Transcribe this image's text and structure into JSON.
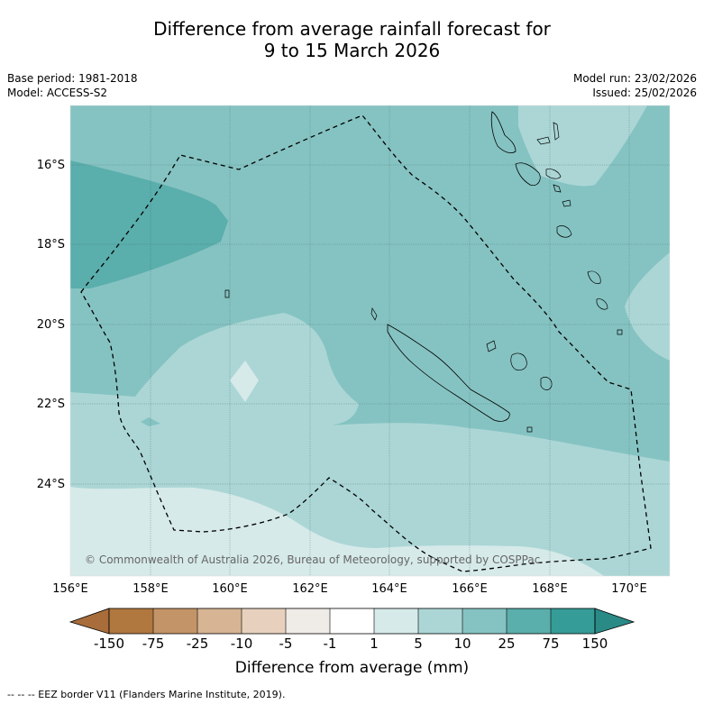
{
  "title_line1": "Difference from average rainfall forecast for",
  "title_line2": "9 to 15 March 2026",
  "meta_left_1": "Base period: 1981-2018",
  "meta_left_2": "Model: ACCESS-S2",
  "meta_right_1": "Model run: 23/02/2026",
  "meta_right_2": "Issued: 25/02/2026",
  "x_ticks": [
    "156°E",
    "158°E",
    "160°E",
    "162°E",
    "164°E",
    "166°E",
    "168°E",
    "170°E"
  ],
  "y_ticks": [
    "16°S",
    "18°S",
    "20°S",
    "22°S",
    "24°S"
  ],
  "copyright": "© Commonwealth of Australia 2026, Bureau of Meteorology, supported by COSPPac",
  "colorbar": {
    "labels": [
      "-150",
      "-75",
      "-25",
      "-10",
      "-5",
      "-1",
      "1",
      "5",
      "10",
      "25",
      "75",
      "150"
    ],
    "title": "Difference from average (mm)",
    "colors": [
      "#a86d3a",
      "#b0773f",
      "#c39467",
      "#d6b494",
      "#e7d0bd",
      "#efebe7",
      "#ffffff",
      "#d6eae9",
      "#acd6d6",
      "#85c3c2",
      "#5aaeac",
      "#369c98",
      "#2a8a86"
    ]
  },
  "footnote": "--  --  -- EEZ border V11 (Flanders Marine Institute, 2019)."
}
